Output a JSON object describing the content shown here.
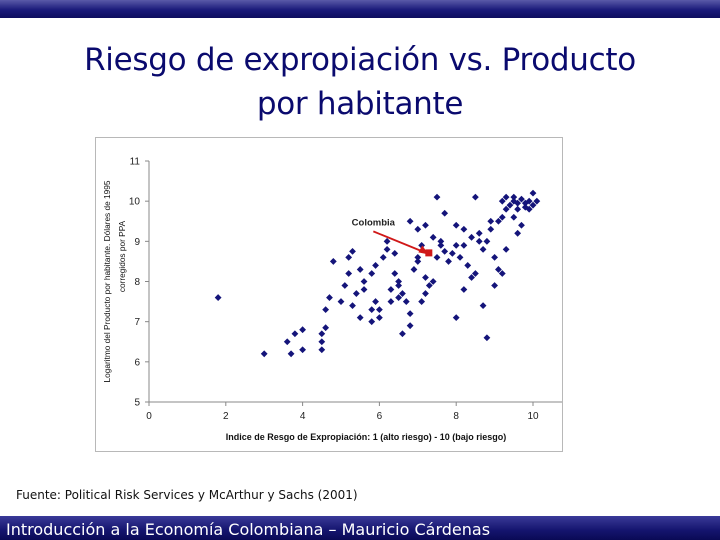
{
  "slide": {
    "title_line1": "Riesgo de expropiación vs. Producto",
    "title_line2": "por habitante",
    "source": "Fuente: Political Risk Services y McArthur y Sachs (2001)",
    "footer": "Introducción a la Economía Colombiana – Mauricio Cárdenas"
  },
  "colors": {
    "title": "#0a0a6e",
    "points": "#14147a",
    "arrow": "#d01818",
    "bar": "#14146e"
  },
  "chart_data": {
    "type": "scatter",
    "xlabel": "Indice de Resgo de Expropiación: 1 (alto riesgo) - 10 (bajo riesgo)",
    "ylabel_line1": "Logaritmo del Producto por habitante. Dólares de 1995",
    "ylabel_line2": "corregidos por PPA",
    "xlim": [
      0,
      10
    ],
    "ylim": [
      5,
      11
    ],
    "xticks": [
      "0",
      "2",
      "4",
      "6",
      "8",
      "10"
    ],
    "yticks": [
      "5",
      "6",
      "7",
      "8",
      "9",
      "10",
      "11"
    ],
    "grid": false,
    "annotation": {
      "label": "Colombia",
      "x": 7.3,
      "y": 8.7
    },
    "points": [
      [
        1.8,
        7.6
      ],
      [
        3.0,
        6.2
      ],
      [
        3.6,
        6.5
      ],
      [
        3.7,
        6.2
      ],
      [
        3.8,
        6.7
      ],
      [
        4.0,
        6.3
      ],
      [
        4.0,
        6.8
      ],
      [
        4.5,
        6.7
      ],
      [
        4.5,
        6.5
      ],
      [
        4.6,
        6.85
      ],
      [
        4.5,
        6.3
      ],
      [
        4.6,
        7.3
      ],
      [
        4.7,
        7.6
      ],
      [
        4.8,
        8.5
      ],
      [
        5.0,
        7.5
      ],
      [
        5.1,
        7.9
      ],
      [
        5.2,
        8.2
      ],
      [
        5.2,
        8.6
      ],
      [
        5.3,
        7.4
      ],
      [
        5.3,
        8.75
      ],
      [
        5.5,
        7.1
      ],
      [
        5.4,
        7.7
      ],
      [
        5.5,
        8.3
      ],
      [
        5.6,
        7.8
      ],
      [
        5.6,
        8.0
      ],
      [
        5.8,
        7.0
      ],
      [
        5.8,
        7.3
      ],
      [
        5.9,
        7.5
      ],
      [
        5.9,
        8.4
      ],
      [
        6.0,
        7.1
      ],
      [
        6.1,
        8.6
      ],
      [
        6.2,
        8.8
      ],
      [
        6.3,
        7.5
      ],
      [
        6.3,
        7.8
      ],
      [
        6.4,
        8.2
      ],
      [
        6.5,
        7.6
      ],
      [
        6.5,
        8.0
      ],
      [
        6.6,
        6.7
      ],
      [
        6.6,
        7.7
      ],
      [
        6.7,
        7.5
      ],
      [
        6.8,
        6.9
      ],
      [
        6.8,
        7.2
      ],
      [
        6.9,
        8.3
      ],
      [
        7.0,
        8.5
      ],
      [
        7.0,
        8.6
      ],
      [
        7.1,
        7.5
      ],
      [
        7.1,
        8.9
      ],
      [
        7.2,
        7.7
      ],
      [
        7.2,
        8.1
      ],
      [
        7.3,
        7.9
      ],
      [
        7.4,
        8.0
      ],
      [
        7.4,
        9.1
      ],
      [
        7.5,
        8.6
      ],
      [
        7.6,
        9.0
      ],
      [
        7.7,
        8.75
      ],
      [
        7.8,
        8.5
      ],
      [
        7.9,
        8.7
      ],
      [
        8.0,
        8.9
      ],
      [
        8.1,
        8.6
      ],
      [
        8.2,
        8.9
      ],
      [
        8.3,
        8.4
      ],
      [
        8.4,
        8.1
      ],
      [
        8.5,
        8.2
      ],
      [
        8.6,
        9.0
      ],
      [
        8.7,
        8.8
      ],
      [
        8.8,
        9.0
      ],
      [
        8.9,
        9.5
      ],
      [
        8.9,
        9.3
      ],
      [
        9.0,
        8.6
      ],
      [
        9.1,
        9.5
      ],
      [
        9.2,
        9.6
      ],
      [
        9.3,
        9.8
      ],
      [
        9.4,
        9.9
      ],
      [
        9.5,
        9.6
      ],
      [
        9.5,
        10.1
      ],
      [
        9.6,
        9.8
      ],
      [
        9.6,
        9.2
      ],
      [
        9.7,
        9.4
      ],
      [
        9.8,
        9.95
      ],
      [
        9.9,
        9.8
      ],
      [
        9.9,
        10.0
      ],
      [
        10.0,
        10.2
      ],
      [
        10.0,
        9.9
      ],
      [
        10.1,
        10.0
      ],
      [
        9.2,
        10.0
      ],
      [
        9.3,
        10.1
      ],
      [
        9.5,
        10.0
      ],
      [
        9.6,
        9.95
      ],
      [
        9.7,
        10.05
      ],
      [
        9.8,
        9.85
      ],
      [
        7.5,
        10.1
      ],
      [
        7.7,
        9.7
      ],
      [
        8.0,
        9.4
      ],
      [
        8.2,
        9.3
      ],
      [
        8.4,
        9.1
      ],
      [
        8.6,
        9.2
      ],
      [
        8.7,
        7.4
      ],
      [
        8.8,
        6.6
      ],
      [
        9.0,
        7.9
      ],
      [
        9.1,
        8.3
      ],
      [
        9.2,
        8.2
      ],
      [
        9.3,
        8.8
      ],
      [
        6.2,
        9.0
      ],
      [
        6.4,
        8.7
      ],
      [
        7.0,
        9.3
      ],
      [
        6.8,
        9.5
      ],
      [
        7.2,
        9.4
      ],
      [
        7.6,
        8.9
      ],
      [
        8.5,
        10.1
      ],
      [
        8.2,
        7.8
      ],
      [
        8.0,
        7.1
      ],
      [
        6.5,
        7.9
      ],
      [
        6.0,
        7.3
      ],
      [
        5.8,
        8.2
      ]
    ]
  }
}
